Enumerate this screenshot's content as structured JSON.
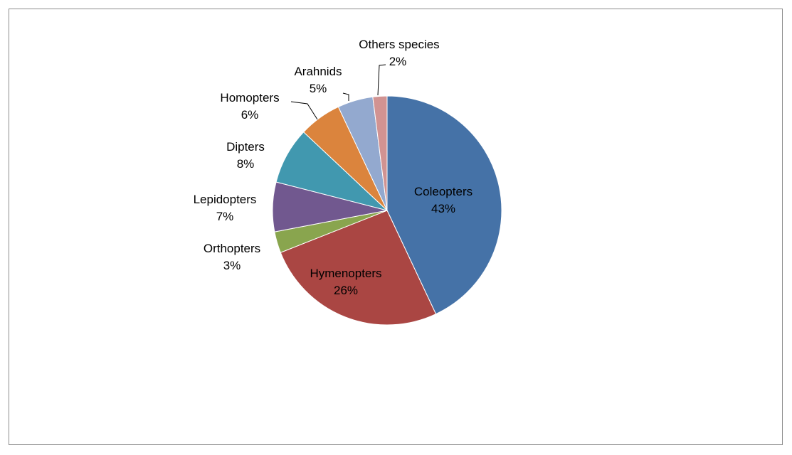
{
  "chart_data": {
    "type": "pie",
    "title": "",
    "categories": [
      "Coleopters",
      "Hymenopters",
      "Orthopters",
      "Lepidopters",
      "Dipters",
      "Homopters",
      "Arahnids",
      "Others species"
    ],
    "values": [
      43,
      26,
      3,
      7,
      8,
      6,
      5,
      2
    ],
    "value_labels": [
      "43%",
      "26%",
      "3%",
      "7%",
      "8%",
      "6%",
      "5%",
      "2%"
    ],
    "colors": [
      "#4572A7",
      "#AA4643",
      "#89A54E",
      "#71588F",
      "#4198AF",
      "#DB843D",
      "#93A9CF",
      "#D19392"
    ],
    "legend": "none",
    "start_angle_deg": 0,
    "direction": "clockwise"
  }
}
